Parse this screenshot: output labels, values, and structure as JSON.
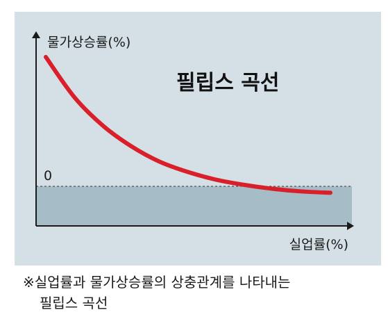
{
  "chart_data": {
    "type": "line",
    "title": "필립스 곡선",
    "xlabel": "실업률(%)",
    "ylabel": "물가상승률(%)",
    "y_zero_label": "0",
    "grid": false,
    "series": [
      {
        "color": "#d9202a",
        "x": [
          0.0,
          0.1,
          0.2,
          0.3,
          0.4,
          0.5,
          0.6,
          0.7,
          0.8,
          0.9,
          1.0
        ],
        "y": [
          1.0,
          0.69,
          0.47,
          0.31,
          0.19,
          0.11,
          0.05,
          0.01,
          -0.02,
          -0.04,
          -0.05
        ]
      }
    ],
    "negative_region_color": "#a6bcc6",
    "panel_color": "#d4e0e6"
  },
  "caption": {
    "line1": "※실업률과 물가상승률의 상충관계를 나타내는",
    "line2": "필립스 곡선"
  }
}
